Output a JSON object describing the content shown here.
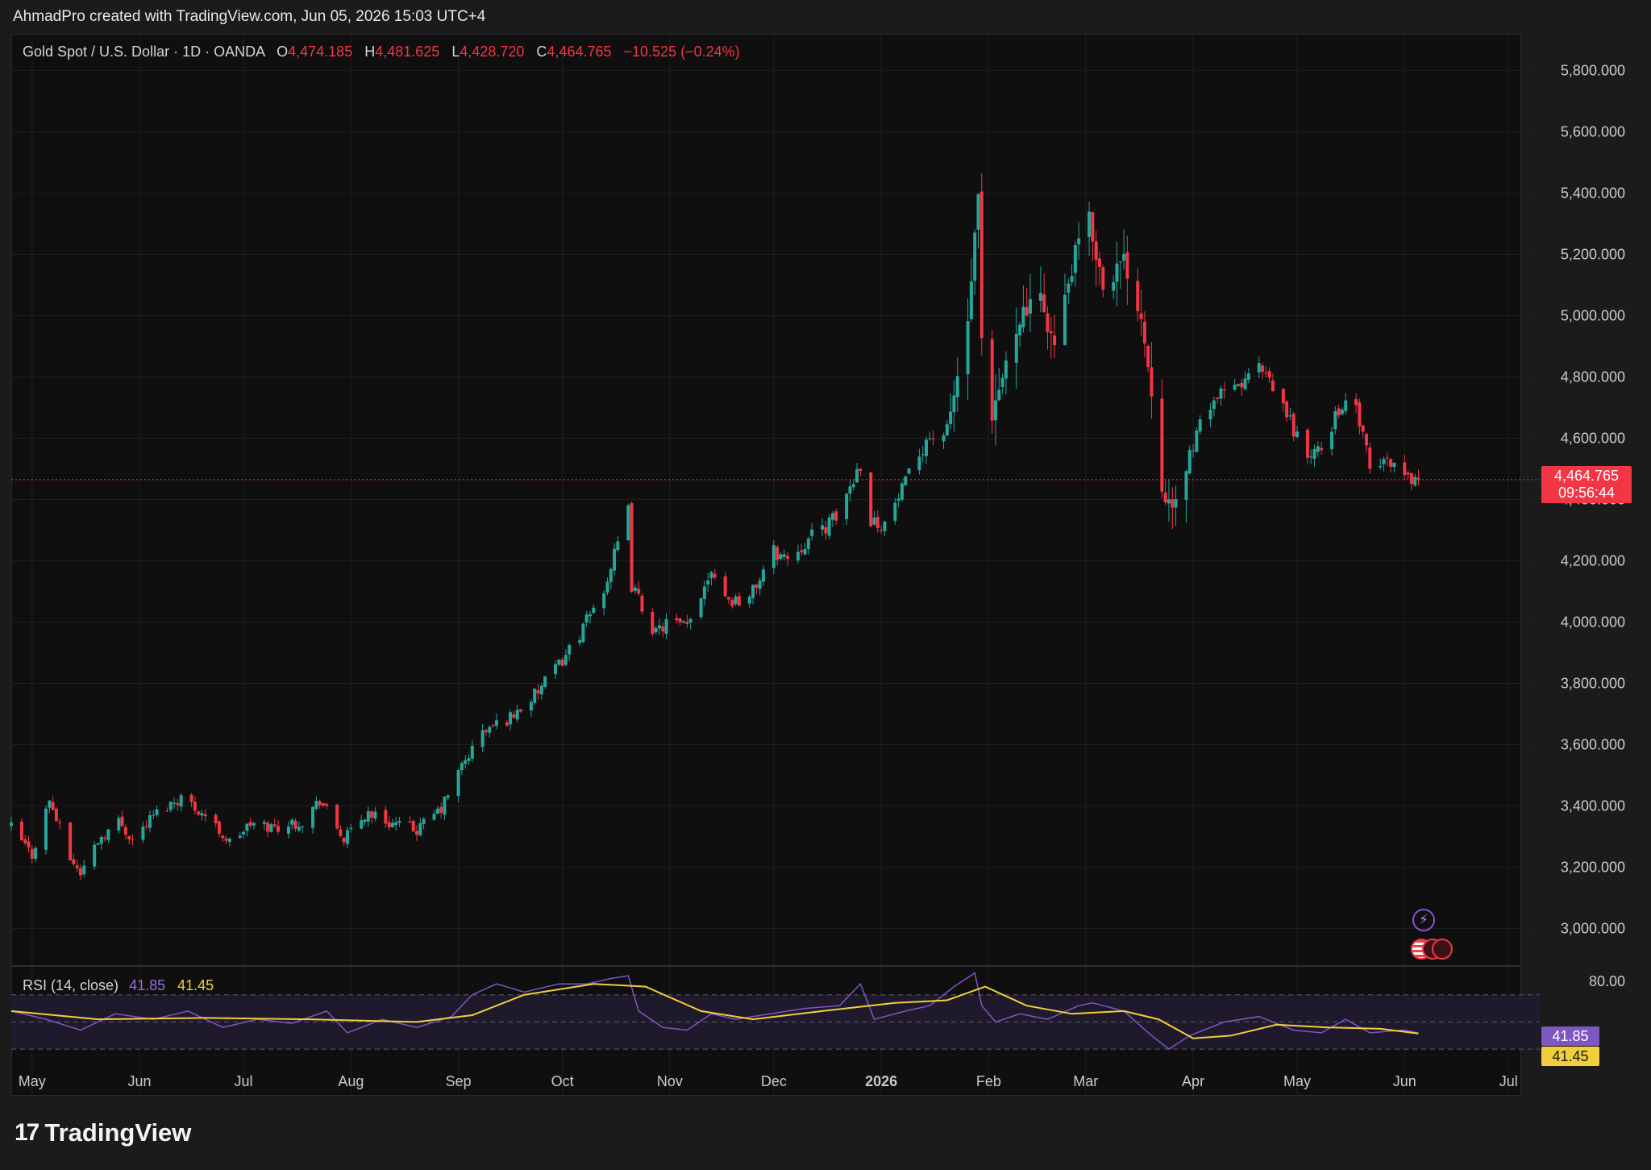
{
  "caption": "AhmadPro created with TradingView.com, Jun 05, 2026 15:03 UTC+4",
  "legend": {
    "symbol": "Gold Spot / U.S. Dollar · 1D · OANDA",
    "open_label": "O",
    "open": "4,474.185",
    "high_label": "H",
    "high": "4,481.625",
    "low_label": "L",
    "low": "4,428.720",
    "close_label": "C",
    "close": "4,464.765",
    "change": "−10.525 (−0.24%)"
  },
  "price_tag": {
    "price": "4,464.765",
    "countdown": "09:56:44"
  },
  "rsi_legend": {
    "label": "RSI (14, close)",
    "rsi_value": "41.85",
    "ma_value": "41.45"
  },
  "rsi_tags": {
    "rsi": "41.85",
    "ma": "41.45"
  },
  "logo": {
    "text": "TradingView"
  },
  "icons": [
    "tradingview-logo-icon",
    "flash-icon",
    "economic-events-icon"
  ],
  "colors": {
    "up": "#26a69a",
    "down": "#f23645",
    "rsi": "#7e57c2",
    "rsi_ma": "#f1cf3c",
    "background": "#0f0f0f"
  },
  "chart_data": [
    {
      "type": "candlestick",
      "ylim": [
        2880,
        5920
      ],
      "y_ticks": [
        3000,
        3200,
        3400,
        3600,
        3800,
        4000,
        4200,
        4400,
        4600,
        4800,
        5000,
        5200,
        5400,
        5600,
        5800
      ],
      "y_tick_labels": [
        "3,000.000",
        "3,200.000",
        "3,400.000",
        "3,600.000",
        "3,800.000",
        "4,000.000",
        "4,200.000",
        "4,400.000",
        "4,600.000",
        "4,800.000",
        "5,000.000",
        "5,200.000",
        "5,400.000",
        "5,600.000",
        "5,800.000"
      ],
      "x_range": [
        "2025-04-25",
        "2026-07-10"
      ],
      "x_ticks": [
        {
          "date": "2025-05-01",
          "label": "May",
          "bold": false
        },
        {
          "date": "2025-06-01",
          "label": "Jun",
          "bold": false
        },
        {
          "date": "2025-07-01",
          "label": "Jul",
          "bold": false
        },
        {
          "date": "2025-08-01",
          "label": "Aug",
          "bold": false
        },
        {
          "date": "2025-09-01",
          "label": "Sep",
          "bold": false
        },
        {
          "date": "2025-10-01",
          "label": "Oct",
          "bold": false
        },
        {
          "date": "2025-11-01",
          "label": "Nov",
          "bold": false
        },
        {
          "date": "2025-12-01",
          "label": "Dec",
          "bold": false
        },
        {
          "date": "2026-01-01",
          "label": "2026",
          "bold": true
        },
        {
          "date": "2026-02-01",
          "label": "Feb",
          "bold": false
        },
        {
          "date": "2026-03-01",
          "label": "Mar",
          "bold": false
        },
        {
          "date": "2026-04-01",
          "label": "Apr",
          "bold": false
        },
        {
          "date": "2026-05-01",
          "label": "May",
          "bold": false
        },
        {
          "date": "2026-06-01",
          "label": "Jun",
          "bold": false
        },
        {
          "date": "2026-07-01",
          "label": "Jul",
          "bold": false
        }
      ],
      "current_price": 4464.765,
      "close_path": [
        [
          "2025-04-25",
          3330
        ],
        [
          "2025-05-01",
          3240
        ],
        [
          "2025-05-06",
          3420
        ],
        [
          "2025-05-12",
          3230
        ],
        [
          "2025-05-15",
          3180
        ],
        [
          "2025-05-20",
          3290
        ],
        [
          "2025-05-26",
          3350
        ],
        [
          "2025-05-30",
          3290
        ],
        [
          "2025-06-05",
          3370
        ],
        [
          "2025-06-13",
          3430
        ],
        [
          "2025-06-20",
          3370
        ],
        [
          "2025-06-27",
          3280
        ],
        [
          "2025-07-03",
          3340
        ],
        [
          "2025-07-10",
          3330
        ],
        [
          "2025-07-18",
          3350
        ],
        [
          "2025-07-23",
          3420
        ],
        [
          "2025-07-30",
          3290
        ],
        [
          "2025-08-06",
          3380
        ],
        [
          "2025-08-11",
          3350
        ],
        [
          "2025-08-20",
          3320
        ],
        [
          "2025-08-27",
          3390
        ],
        [
          "2025-09-02",
          3530
        ],
        [
          "2025-09-08",
          3640
        ],
        [
          "2025-09-16",
          3690
        ],
        [
          "2025-09-23",
          3760
        ],
        [
          "2025-09-30",
          3860
        ],
        [
          "2025-10-07",
          3980
        ],
        [
          "2025-10-13",
          4110
        ],
        [
          "2025-10-17",
          4250
        ],
        [
          "2025-10-20",
          4360
        ],
        [
          "2025-10-21",
          4120
        ],
        [
          "2025-10-28",
          3960
        ],
        [
          "2025-10-31",
          4000
        ],
        [
          "2025-11-06",
          3980
        ],
        [
          "2025-11-13",
          4180
        ],
        [
          "2025-11-18",
          4070
        ],
        [
          "2025-11-24",
          4080
        ],
        [
          "2025-12-01",
          4230
        ],
        [
          "2025-12-05",
          4210
        ],
        [
          "2025-12-12",
          4280
        ],
        [
          "2025-12-19",
          4340
        ],
        [
          "2025-12-26",
          4520
        ],
        [
          "2025-12-29",
          4330
        ],
        [
          "2026-01-02",
          4320
        ],
        [
          "2026-01-08",
          4450
        ],
        [
          "2026-01-14",
          4600
        ],
        [
          "2026-01-20",
          4620
        ],
        [
          "2026-01-26",
          4980
        ],
        [
          "2026-01-29",
          5380
        ],
        [
          "2026-01-30",
          4900
        ],
        [
          "2026-02-02",
          4650
        ],
        [
          "2026-02-05",
          4800
        ],
        [
          "2026-02-10",
          5000
        ],
        [
          "2026-02-16",
          5050
        ],
        [
          "2026-02-20",
          4900
        ],
        [
          "2026-02-24",
          5100
        ],
        [
          "2026-02-27",
          5250
        ],
        [
          "2026-03-02",
          5310
        ],
        [
          "2026-03-06",
          5100
        ],
        [
          "2026-03-12",
          5180
        ],
        [
          "2026-03-17",
          5000
        ],
        [
          "2026-03-20",
          4760
        ],
        [
          "2026-03-23",
          4450
        ],
        [
          "2026-03-26",
          4350
        ],
        [
          "2026-03-31",
          4550
        ],
        [
          "2026-04-06",
          4720
        ],
        [
          "2026-04-13",
          4760
        ],
        [
          "2026-04-20",
          4830
        ],
        [
          "2026-04-27",
          4700
        ],
        [
          "2026-05-04",
          4540
        ],
        [
          "2026-05-08",
          4560
        ],
        [
          "2026-05-13",
          4700
        ],
        [
          "2026-05-18",
          4700
        ],
        [
          "2026-05-22",
          4500
        ],
        [
          "2026-05-28",
          4530
        ],
        [
          "2026-06-01",
          4480
        ],
        [
          "2026-06-05",
          4465
        ]
      ]
    },
    {
      "type": "line",
      "title": "RSI (14, close)",
      "ylim": [
        20,
        90
      ],
      "y_ticks": [
        80
      ],
      "y_tick_labels": [
        "80.00"
      ],
      "band": [
        30,
        70
      ],
      "midline": 50,
      "series": [
        {
          "name": "RSI",
          "points": [
            [
              "2025-04-25",
              58
            ],
            [
              "2025-05-05",
              52
            ],
            [
              "2025-05-15",
              44
            ],
            [
              "2025-05-25",
              56
            ],
            [
              "2025-06-05",
              52
            ],
            [
              "2025-06-15",
              58
            ],
            [
              "2025-06-25",
              46
            ],
            [
              "2025-07-05",
              52
            ],
            [
              "2025-07-15",
              49
            ],
            [
              "2025-07-25",
              58
            ],
            [
              "2025-07-31",
              42
            ],
            [
              "2025-08-10",
              52
            ],
            [
              "2025-08-20",
              46
            ],
            [
              "2025-08-30",
              54
            ],
            [
              "2025-09-05",
              70
            ],
            [
              "2025-09-12",
              78
            ],
            [
              "2025-09-20",
              72
            ],
            [
              "2025-09-30",
              78
            ],
            [
              "2025-10-08",
              78
            ],
            [
              "2025-10-15",
              82
            ],
            [
              "2025-10-20",
              84
            ],
            [
              "2025-10-23",
              58
            ],
            [
              "2025-10-30",
              46
            ],
            [
              "2025-11-06",
              44
            ],
            [
              "2025-11-13",
              56
            ],
            [
              "2025-11-20",
              52
            ],
            [
              "2025-11-30",
              56
            ],
            [
              "2025-12-10",
              60
            ],
            [
              "2025-12-20",
              62
            ],
            [
              "2025-12-26",
              78
            ],
            [
              "2025-12-30",
              52
            ],
            [
              "2026-01-08",
              58
            ],
            [
              "2026-01-15",
              62
            ],
            [
              "2026-01-22",
              76
            ],
            [
              "2026-01-28",
              86
            ],
            [
              "2026-01-30",
              62
            ],
            [
              "2026-02-03",
              50
            ],
            [
              "2026-02-10",
              56
            ],
            [
              "2026-02-18",
              52
            ],
            [
              "2026-02-27",
              62
            ],
            [
              "2026-03-03",
              64
            ],
            [
              "2026-03-12",
              58
            ],
            [
              "2026-03-20",
              40
            ],
            [
              "2026-03-25",
              30
            ],
            [
              "2026-03-31",
              40
            ],
            [
              "2026-04-10",
              50
            ],
            [
              "2026-04-20",
              54
            ],
            [
              "2026-04-30",
              44
            ],
            [
              "2026-05-08",
              42
            ],
            [
              "2026-05-15",
              52
            ],
            [
              "2026-05-22",
              42
            ],
            [
              "2026-06-01",
              44
            ],
            [
              "2026-06-05",
              41.85
            ]
          ]
        },
        {
          "name": "RSI-based MA",
          "points": [
            [
              "2025-04-25",
              58
            ],
            [
              "2025-05-20",
              52
            ],
            [
              "2025-06-20",
              53
            ],
            [
              "2025-07-20",
              52
            ],
            [
              "2025-08-20",
              50
            ],
            [
              "2025-09-05",
              55
            ],
            [
              "2025-09-20",
              70
            ],
            [
              "2025-10-10",
              78
            ],
            [
              "2025-10-25",
              76
            ],
            [
              "2025-11-10",
              58
            ],
            [
              "2025-11-25",
              52
            ],
            [
              "2025-12-15",
              58
            ],
            [
              "2026-01-05",
              64
            ],
            [
              "2026-01-20",
              66
            ],
            [
              "2026-01-31",
              76
            ],
            [
              "2026-02-12",
              62
            ],
            [
              "2026-02-25",
              56
            ],
            [
              "2026-03-12",
              58
            ],
            [
              "2026-03-22",
              52
            ],
            [
              "2026-04-01",
              38
            ],
            [
              "2026-04-12",
              40
            ],
            [
              "2026-04-25",
              48
            ],
            [
              "2026-05-10",
              46
            ],
            [
              "2026-05-25",
              45
            ],
            [
              "2026-06-05",
              41.45
            ]
          ]
        }
      ]
    }
  ]
}
